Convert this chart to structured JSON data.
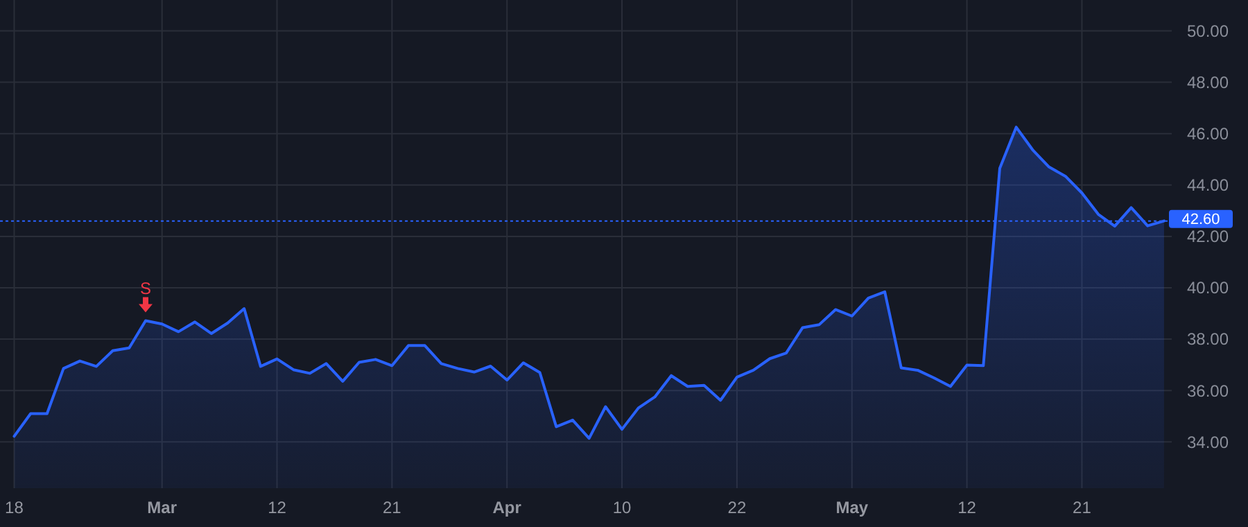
{
  "chart_data": {
    "type": "area",
    "categories": [
      "18",
      null,
      null,
      null,
      null,
      null,
      null,
      null,
      null,
      "Mar",
      null,
      null,
      null,
      null,
      null,
      null,
      "12",
      null,
      null,
      null,
      null,
      null,
      null,
      "21",
      null,
      null,
      null,
      null,
      null,
      null,
      "Apr",
      null,
      null,
      null,
      null,
      null,
      null,
      "10",
      null,
      null,
      null,
      null,
      null,
      null,
      "22",
      null,
      null,
      null,
      null,
      null,
      null,
      "May",
      null,
      null,
      null,
      null,
      null,
      null,
      "12",
      null,
      null,
      null,
      null,
      null,
      null,
      "21",
      null,
      null,
      null,
      null,
      null
    ],
    "series": [
      {
        "color": "#2962ff",
        "values": [
          34.22,
          35.1,
          35.1,
          36.86,
          37.15,
          36.94,
          37.55,
          37.66,
          38.72,
          38.59,
          38.29,
          38.67,
          38.22,
          38.63,
          39.19,
          36.94,
          37.23,
          36.81,
          36.67,
          37.05,
          36.36,
          37.1,
          37.21,
          36.97,
          37.75,
          37.75,
          37.05,
          36.86,
          36.72,
          36.95,
          36.41,
          37.08,
          36.7,
          34.59,
          34.85,
          34.14,
          35.37,
          34.49,
          35.32,
          35.75,
          36.58,
          36.16,
          36.2,
          35.62,
          36.52,
          36.79,
          37.24,
          37.46,
          38.45,
          38.56,
          39.15,
          38.9,
          39.6,
          39.84,
          36.88,
          36.79,
          36.49,
          36.16,
          36.99,
          36.97,
          44.65,
          46.25,
          45.37,
          44.7,
          44.34,
          43.69,
          42.86,
          42.4,
          43.12,
          42.41,
          42.6
        ]
      }
    ],
    "ylim": [
      32.2,
      51.2
    ],
    "yticks": [
      {
        "value": 34,
        "label": "34.00"
      },
      {
        "value": 36,
        "label": "36.00"
      },
      {
        "value": 38,
        "label": "38.00"
      },
      {
        "value": 40,
        "label": "40.00"
      },
      {
        "value": 42,
        "label": "42.00"
      },
      {
        "value": 44,
        "label": "44.00"
      },
      {
        "value": 46,
        "label": "46.00"
      },
      {
        "value": 48,
        "label": "48.00"
      },
      {
        "value": 50,
        "label": "50.00"
      }
    ],
    "grid": true,
    "marker": "none",
    "line_style": "solid",
    "ref_lines": [
      {
        "axis": "y",
        "value": 42.6,
        "label": "42.60",
        "color": "#2962ff",
        "line_style": "dotted"
      }
    ],
    "annotations": [
      {
        "text": "S",
        "y": 38.72
      }
    ]
  }
}
